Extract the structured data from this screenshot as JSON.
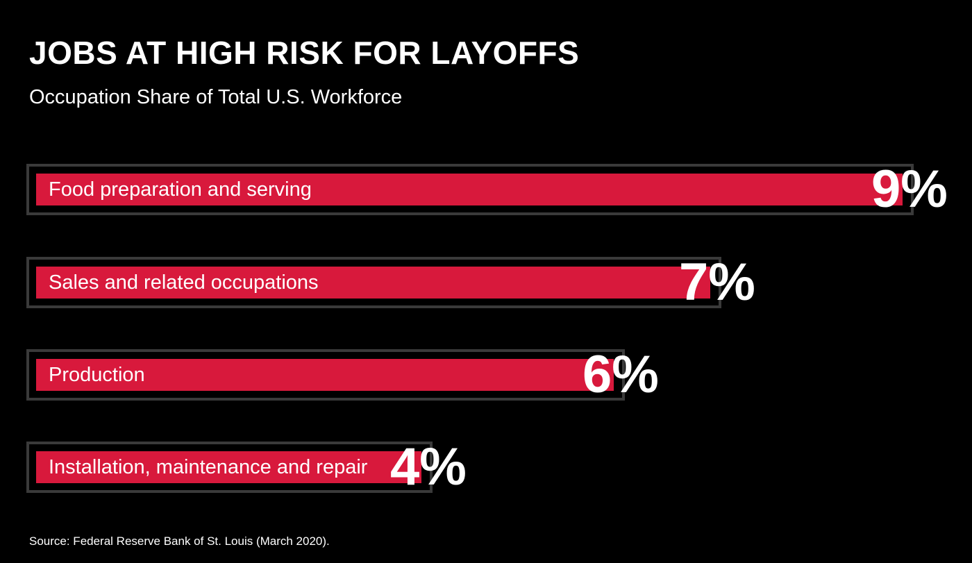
{
  "title": "JOBS AT HIGH RISK FOR LAYOFFS",
  "subtitle": "Occupation Share of Total U.S. Workforce",
  "source": "Source: Federal Reserve Bank of St. Louis (March 2020).",
  "colors": {
    "background": "#000000",
    "bar_fill": "#d8193c",
    "bar_outline": "#3a3a3a",
    "text": "#ffffff"
  },
  "chart_data": {
    "type": "bar",
    "orientation": "horizontal",
    "title": "JOBS AT HIGH RISK FOR LAYOFFS",
    "subtitle": "Occupation Share of Total U.S. Workforce",
    "categories": [
      "Food preparation and serving",
      "Sales and related occupations",
      "Production",
      "Installation, maintenance and repair"
    ],
    "values": [
      9,
      7,
      6,
      4
    ],
    "value_labels": [
      "9%",
      "7%",
      "6%",
      "4%"
    ],
    "unit": "%",
    "grid": false,
    "legend": "none"
  }
}
